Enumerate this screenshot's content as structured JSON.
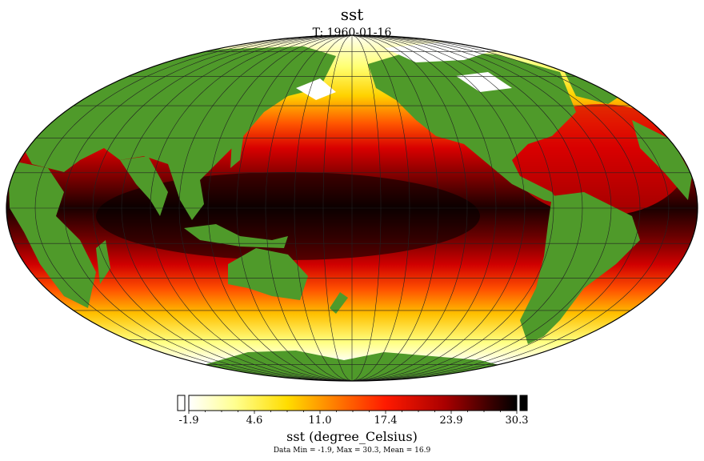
{
  "title": "sst",
  "subtitle": "T: 1960-01-16",
  "map": {
    "projection": "Mollweide",
    "center_longitude": 180,
    "land_color": "#4f9a2a",
    "graticule_color": "#222222",
    "colormap": [
      "#ffffff",
      "#ffff70",
      "#ffd200",
      "#ff6000",
      "#e00000",
      "#8a0000",
      "#000000"
    ]
  },
  "colorbar": {
    "ticks": [
      "-1.9",
      "4.6",
      "11.0",
      "17.4",
      "23.9",
      "30.3"
    ],
    "label": "sst (degree_Celsius)",
    "stats": "Data Min = -1.9, Max = 30.3, Mean = 16.9",
    "under_color": "#ffffff",
    "over_color": "#000000"
  }
}
